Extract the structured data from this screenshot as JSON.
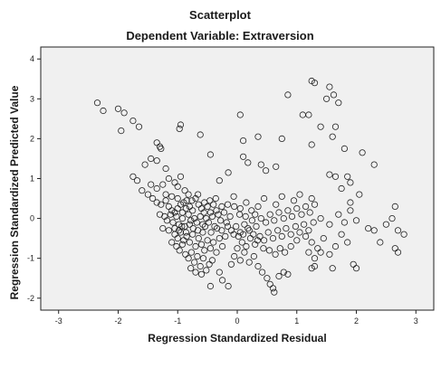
{
  "chart_data": {
    "type": "scatter",
    "title": "Scatterplot",
    "subtitle": "Dependent Variable: Extraversion",
    "xlabel": "Regression Standardized Residual",
    "ylabel": "Regression Standardized Predicted Value",
    "xlim": [
      -3.3,
      3.3
    ],
    "ylim": [
      -2.3,
      4.3
    ],
    "xticks": [
      -3,
      -2,
      -1,
      0,
      1,
      2,
      3
    ],
    "xtick_labels": [
      "-3",
      "-2",
      "-1",
      "0",
      "1",
      "2",
      "3"
    ],
    "yticks": [
      -2,
      -1,
      0,
      1,
      2,
      3,
      4
    ],
    "ytick_labels": [
      "-2",
      "-1",
      "0",
      "1",
      "2",
      "3",
      "4"
    ],
    "grid": false,
    "colors": {
      "plot_bg": "#f0f0f0",
      "marker": "#222222",
      "frame": "#222222"
    },
    "points": [
      [
        -2.35,
        2.9
      ],
      [
        -2.25,
        2.7
      ],
      [
        -2.0,
        2.75
      ],
      [
        -1.9,
        2.65
      ],
      [
        -1.95,
        2.2
      ],
      [
        -1.75,
        2.45
      ],
      [
        -1.65,
        2.3
      ],
      [
        -1.35,
        1.9
      ],
      [
        -1.3,
        1.8
      ],
      [
        -1.28,
        1.75
      ],
      [
        -1.45,
        1.5
      ],
      [
        -1.35,
        1.45
      ],
      [
        -1.55,
        1.35
      ],
      [
        -1.2,
        1.25
      ],
      [
        -0.95,
        2.35
      ],
      [
        -0.97,
        2.25
      ],
      [
        -0.62,
        2.1
      ],
      [
        -0.45,
        1.6
      ],
      [
        -1.75,
        1.05
      ],
      [
        -1.68,
        0.95
      ],
      [
        -1.6,
        0.7
      ],
      [
        -1.45,
        0.85
      ],
      [
        -1.35,
        0.75
      ],
      [
        -1.25,
        0.85
      ],
      [
        -1.15,
        1.0
      ],
      [
        -1.05,
        0.9
      ],
      [
        -0.95,
        1.05
      ],
      [
        -1.0,
        0.8
      ],
      [
        -0.88,
        0.7
      ],
      [
        -0.82,
        0.6
      ],
      [
        -1.5,
        0.6
      ],
      [
        -1.42,
        0.5
      ],
      [
        -1.35,
        0.4
      ],
      [
        -1.28,
        0.35
      ],
      [
        -1.2,
        0.45
      ],
      [
        -1.15,
        0.3
      ],
      [
        -1.1,
        0.2
      ],
      [
        -1.05,
        0.15
      ],
      [
        -1.0,
        0.25
      ],
      [
        -0.95,
        0.35
      ],
      [
        -0.9,
        0.4
      ],
      [
        -0.85,
        0.45
      ],
      [
        -0.8,
        0.3
      ],
      [
        -0.75,
        0.2
      ],
      [
        -0.7,
        0.5
      ],
      [
        -0.65,
        0.35
      ],
      [
        -0.6,
        0.25
      ],
      [
        -0.55,
        0.4
      ],
      [
        -0.5,
        0.3
      ],
      [
        -0.45,
        0.15
      ],
      [
        -0.4,
        0.35
      ],
      [
        -0.35,
        0.2
      ],
      [
        -1.3,
        0.1
      ],
      [
        -1.22,
        0.05
      ],
      [
        -1.18,
        -0.05
      ],
      [
        -1.12,
        0.1
      ],
      [
        -1.08,
        -0.1
      ],
      [
        -1.02,
        0.05
      ],
      [
        -0.98,
        -0.15
      ],
      [
        -0.92,
        0.0
      ],
      [
        -0.88,
        -0.2
      ],
      [
        -0.82,
        0.1
      ],
      [
        -0.78,
        -0.05
      ],
      [
        -0.72,
        0.0
      ],
      [
        -0.68,
        -0.1
      ],
      [
        -0.62,
        0.05
      ],
      [
        -0.58,
        -0.15
      ],
      [
        -0.52,
        0.0
      ],
      [
        -0.48,
        -0.1
      ],
      [
        -0.42,
        0.05
      ],
      [
        -0.38,
        -0.2
      ],
      [
        -0.32,
        0.1
      ],
      [
        -0.28,
        -0.05
      ],
      [
        -0.22,
        0.15
      ],
      [
        -0.18,
        -0.1
      ],
      [
        -0.12,
        0.05
      ],
      [
        -1.25,
        -0.25
      ],
      [
        -1.15,
        -0.3
      ],
      [
        -1.05,
        -0.4
      ],
      [
        -1.0,
        -0.5
      ],
      [
        -0.95,
        -0.35
      ],
      [
        -0.9,
        -0.55
      ],
      [
        -0.85,
        -0.45
      ],
      [
        -0.8,
        -0.6
      ],
      [
        -0.75,
        -0.4
      ],
      [
        -0.7,
        -0.7
      ],
      [
        -0.65,
        -0.5
      ],
      [
        -0.6,
        -0.65
      ],
      [
        -0.55,
        -0.8
      ],
      [
        -0.5,
        -0.55
      ],
      [
        -0.45,
        -0.75
      ],
      [
        -0.4,
        -0.6
      ],
      [
        -0.35,
        -0.85
      ],
      [
        -0.3,
        -0.5
      ],
      [
        -0.25,
        -0.7
      ],
      [
        -0.2,
        -0.45
      ],
      [
        -1.1,
        -0.6
      ],
      [
        -1.02,
        -0.7
      ],
      [
        -0.97,
        -0.8
      ],
      [
        -0.92,
        -0.65
      ],
      [
        -0.87,
        -0.9
      ],
      [
        -0.82,
        -1.0
      ],
      [
        -0.77,
        -0.85
      ],
      [
        -0.72,
        -1.1
      ],
      [
        -0.67,
        -0.95
      ],
      [
        -0.62,
        -1.2
      ],
      [
        -0.57,
        -1.0
      ],
      [
        -0.52,
        -1.3
      ],
      [
        -0.47,
        -1.15
      ],
      [
        -0.42,
        -1.05
      ],
      [
        -0.78,
        -1.25
      ],
      [
        -0.7,
        -1.35
      ],
      [
        -0.6,
        -1.4
      ],
      [
        -0.45,
        -1.7
      ],
      [
        -0.25,
        -1.55
      ],
      [
        -0.15,
        -1.7
      ],
      [
        -0.3,
        -1.35
      ],
      [
        -0.1,
        -1.15
      ],
      [
        -0.05,
        -0.95
      ],
      [
        0.05,
        -1.05
      ],
      [
        0.12,
        -0.85
      ],
      [
        0.2,
        -1.1
      ],
      [
        0.28,
        -0.95
      ],
      [
        0.35,
        -1.2
      ],
      [
        0.42,
        -1.35
      ],
      [
        0.5,
        -1.5
      ],
      [
        0.55,
        -1.65
      ],
      [
        0.6,
        -1.75
      ],
      [
        0.62,
        -1.85
      ],
      [
        0.7,
        -1.45
      ],
      [
        0.78,
        -1.35
      ],
      [
        0.85,
        -1.4
      ],
      [
        0.0,
        -0.75
      ],
      [
        0.08,
        -0.6
      ],
      [
        0.15,
        -0.7
      ],
      [
        0.22,
        -0.5
      ],
      [
        0.3,
        -0.65
      ],
      [
        0.38,
        -0.45
      ],
      [
        0.45,
        -0.55
      ],
      [
        0.52,
        -0.35
      ],
      [
        0.6,
        -0.5
      ],
      [
        0.68,
        -0.3
      ],
      [
        0.75,
        -0.45
      ],
      [
        0.82,
        -0.25
      ],
      [
        0.9,
        -0.4
      ],
      [
        0.98,
        -0.2
      ],
      [
        1.05,
        -0.35
      ],
      [
        1.12,
        -0.15
      ],
      [
        1.2,
        -0.3
      ],
      [
        1.28,
        -0.1
      ],
      [
        -0.1,
        -0.3
      ],
      [
        -0.02,
        -0.2
      ],
      [
        0.05,
        -0.35
      ],
      [
        0.12,
        -0.15
      ],
      [
        0.18,
        -0.25
      ],
      [
        0.25,
        -0.05
      ],
      [
        0.32,
        -0.2
      ],
      [
        0.4,
        0.0
      ],
      [
        0.48,
        -0.1
      ],
      [
        0.55,
        0.1
      ],
      [
        0.62,
        -0.05
      ],
      [
        0.7,
        0.15
      ],
      [
        0.78,
        0.0
      ],
      [
        0.85,
        0.2
      ],
      [
        0.92,
        0.05
      ],
      [
        1.0,
        0.25
      ],
      [
        1.08,
        0.1
      ],
      [
        1.15,
        0.3
      ],
      [
        1.22,
        0.15
      ],
      [
        1.3,
        0.35
      ],
      [
        -0.05,
        0.3
      ],
      [
        0.05,
        0.25
      ],
      [
        0.15,
        0.4
      ],
      [
        0.35,
        0.3
      ],
      [
        0.45,
        0.5
      ],
      [
        0.65,
        0.35
      ],
      [
        0.75,
        0.55
      ],
      [
        0.95,
        0.45
      ],
      [
        1.05,
        0.6
      ],
      [
        1.25,
        0.5
      ],
      [
        0.1,
        1.55
      ],
      [
        0.18,
        1.4
      ],
      [
        0.4,
        1.35
      ],
      [
        0.48,
        1.2
      ],
      [
        0.65,
        1.3
      ],
      [
        -0.15,
        1.15
      ],
      [
        -0.3,
        0.95
      ],
      [
        0.05,
        2.6
      ],
      [
        0.1,
        1.95
      ],
      [
        0.35,
        2.05
      ],
      [
        0.75,
        2.0
      ],
      [
        0.85,
        3.1
      ],
      [
        1.1,
        2.6
      ],
      [
        1.2,
        2.6
      ],
      [
        1.25,
        3.45
      ],
      [
        1.3,
        3.4
      ],
      [
        1.25,
        1.85
      ],
      [
        1.4,
        2.3
      ],
      [
        1.5,
        3.0
      ],
      [
        1.55,
        3.3
      ],
      [
        1.62,
        3.1
      ],
      [
        1.7,
        2.9
      ],
      [
        1.65,
        2.3
      ],
      [
        1.6,
        2.05
      ],
      [
        1.8,
        1.75
      ],
      [
        1.55,
        1.1
      ],
      [
        1.65,
        1.05
      ],
      [
        1.75,
        0.75
      ],
      [
        1.85,
        1.05
      ],
      [
        1.9,
        0.9
      ],
      [
        2.1,
        1.65
      ],
      [
        2.3,
        1.35
      ],
      [
        2.05,
        0.6
      ],
      [
        1.9,
        0.4
      ],
      [
        1.15,
        -0.45
      ],
      [
        1.25,
        -0.6
      ],
      [
        1.35,
        -0.75
      ],
      [
        1.45,
        -0.5
      ],
      [
        1.55,
        -0.9
      ],
      [
        1.65,
        -0.7
      ],
      [
        1.75,
        -0.4
      ],
      [
        1.85,
        -0.6
      ],
      [
        1.2,
        -0.85
      ],
      [
        1.3,
        -1.0
      ],
      [
        1.4,
        -0.85
      ],
      [
        1.25,
        -1.25
      ],
      [
        1.3,
        -1.2
      ],
      [
        1.6,
        -1.25
      ],
      [
        1.95,
        -1.15
      ],
      [
        2.0,
        -1.25
      ],
      [
        1.4,
        0.0
      ],
      [
        1.55,
        -0.15
      ],
      [
        1.7,
        0.1
      ],
      [
        1.8,
        -0.1
      ],
      [
        1.9,
        0.2
      ],
      [
        2.0,
        -0.05
      ],
      [
        2.2,
        -0.25
      ],
      [
        2.3,
        -0.3
      ],
      [
        2.4,
        -0.6
      ],
      [
        2.5,
        -0.15
      ],
      [
        2.6,
        0.0
      ],
      [
        2.65,
        0.3
      ],
      [
        2.65,
        -0.75
      ],
      [
        2.7,
        -0.85
      ],
      [
        2.7,
        -0.3
      ],
      [
        2.8,
        -0.4
      ],
      [
        -1.05,
        -0.25
      ],
      [
        -0.98,
        -0.3
      ],
      [
        -0.93,
        -0.2
      ],
      [
        -0.86,
        -0.35
      ],
      [
        -0.8,
        -0.15
      ],
      [
        -0.74,
        -0.25
      ],
      [
        -0.66,
        -0.3
      ],
      [
        -0.58,
        -0.35
      ],
      [
        -0.54,
        -0.2
      ],
      [
        -0.44,
        -0.35
      ],
      [
        -0.34,
        -0.25
      ],
      [
        -0.26,
        -0.3
      ],
      [
        -0.16,
        -0.2
      ],
      [
        -0.06,
        -0.4
      ],
      [
        0.02,
        -0.45
      ],
      [
        0.1,
        -0.4
      ],
      [
        0.2,
        -0.3
      ],
      [
        0.27,
        -0.4
      ],
      [
        0.34,
        -0.55
      ],
      [
        0.44,
        -0.75
      ],
      [
        0.54,
        -0.8
      ],
      [
        0.64,
        -0.9
      ],
      [
        0.72,
        -0.75
      ],
      [
        0.8,
        -0.85
      ],
      [
        0.9,
        -0.7
      ],
      [
        1.0,
        -0.55
      ],
      [
        -1.2,
        0.6
      ],
      [
        -1.1,
        0.55
      ],
      [
        -1.0,
        0.5
      ],
      [
        -0.92,
        0.15
      ],
      [
        -0.86,
        0.25
      ],
      [
        -0.76,
        0.45
      ],
      [
        -0.66,
        0.6
      ],
      [
        -0.56,
        0.15
      ],
      [
        -0.46,
        0.45
      ],
      [
        -0.36,
        0.5
      ],
      [
        -0.26,
        0.3
      ],
      [
        -0.16,
        0.35
      ],
      [
        -0.06,
        0.55
      ],
      [
        0.04,
        0.1
      ],
      [
        0.14,
        0.05
      ],
      [
        0.24,
        0.2
      ],
      [
        0.3,
        0.1
      ]
    ]
  }
}
